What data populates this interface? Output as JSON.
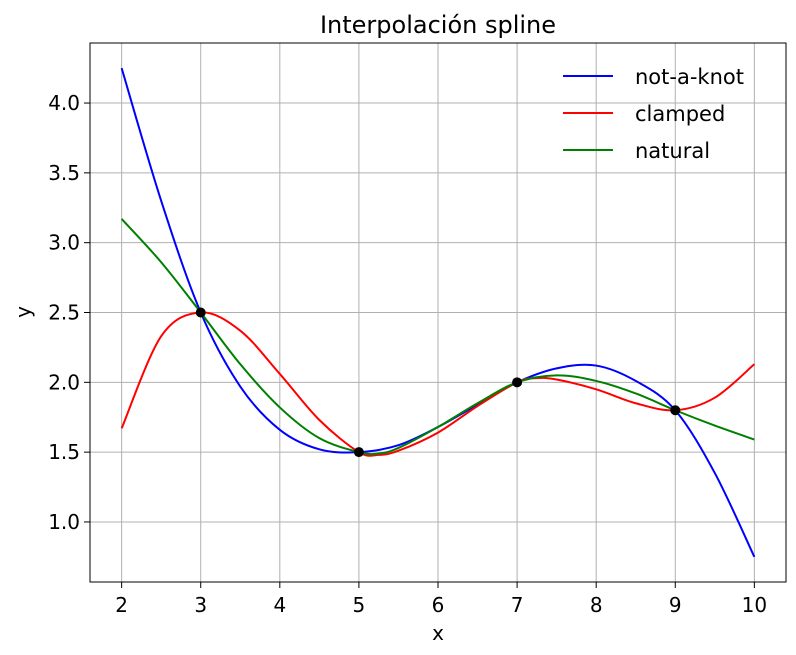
{
  "chart_data": {
    "type": "line",
    "title": "Interpolación spline",
    "xlabel": "x",
    "ylabel": "y",
    "xlim": [
      1.6,
      10.4
    ],
    "ylim": [
      0.57,
      4.43
    ],
    "xticks": [
      2,
      3,
      4,
      5,
      6,
      7,
      8,
      9,
      10
    ],
    "yticks": [
      1.0,
      1.5,
      2.0,
      2.5,
      3.0,
      3.5,
      4.0
    ],
    "ytick_labels": [
      "1.0",
      "1.5",
      "2.0",
      "2.5",
      "3.0",
      "3.5",
      "4.0"
    ],
    "grid": true,
    "legend_position": "top-right",
    "knots": {
      "x": [
        3,
        5,
        7,
        9
      ],
      "y": [
        2.5,
        1.5,
        2.0,
        1.8
      ],
      "color": "#000000"
    },
    "series": [
      {
        "name": "not-a-knot",
        "color": "#0000ff",
        "x": [
          2,
          2.5,
          3,
          3.5,
          4,
          4.5,
          5,
          5.5,
          6,
          6.5,
          7,
          7.5,
          8,
          8.5,
          9,
          9.5,
          10
        ],
        "y": [
          4.25,
          3.3,
          2.5,
          1.97,
          1.66,
          1.52,
          1.5,
          1.55,
          1.68,
          1.84,
          2.0,
          2.1,
          2.12,
          2.01,
          1.8,
          1.35,
          0.75
        ]
      },
      {
        "name": "clamped",
        "color": "#ff0000",
        "x": [
          2,
          2.5,
          3,
          3.5,
          4,
          4.5,
          5,
          5.25,
          5.5,
          6,
          6.5,
          7,
          7.25,
          7.5,
          8,
          8.5,
          9,
          9.5,
          10
        ],
        "y": [
          1.67,
          2.33,
          2.5,
          2.37,
          2.06,
          1.73,
          1.5,
          1.48,
          1.51,
          1.64,
          1.83,
          2.0,
          2.03,
          2.02,
          1.95,
          1.85,
          1.8,
          1.89,
          2.13
        ]
      },
      {
        "name": "natural",
        "color": "#008000",
        "x": [
          2,
          2.5,
          3,
          3.5,
          4,
          4.5,
          5,
          5.25,
          5.5,
          6,
          6.5,
          7,
          7.5,
          8,
          8.5,
          9,
          9.5,
          10
        ],
        "y": [
          3.17,
          2.86,
          2.5,
          2.13,
          1.82,
          1.6,
          1.5,
          1.49,
          1.53,
          1.68,
          1.85,
          2.0,
          2.05,
          2.01,
          1.92,
          1.8,
          1.69,
          1.59
        ]
      }
    ]
  }
}
